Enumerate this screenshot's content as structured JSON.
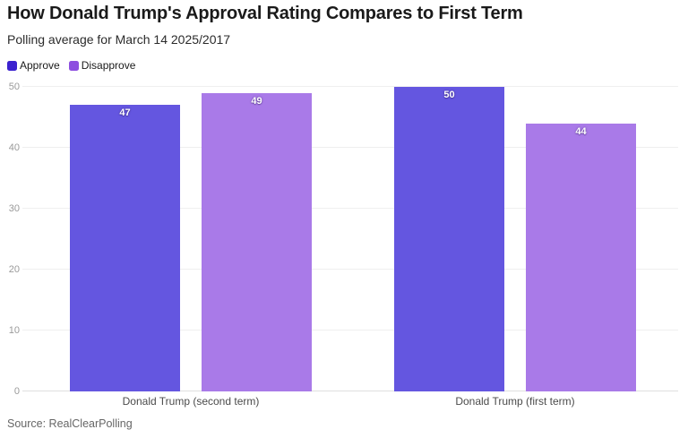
{
  "header": {
    "title": "How Donald Trump's Approval Rating Compares to First Term",
    "subtitle": "Polling average for March 14 2025/2017"
  },
  "legend": {
    "items": [
      {
        "label": "Approve",
        "color": "#3b22cf"
      },
      {
        "label": "Disapprove",
        "color": "#8d4fe0"
      }
    ]
  },
  "chart_data": {
    "type": "bar",
    "categories": [
      "Donald Trump (second term)",
      "Donald Trump (first term)"
    ],
    "series": [
      {
        "name": "Approve",
        "values": [
          47,
          50
        ],
        "bar_color": "#6456e0"
      },
      {
        "name": "Disapprove",
        "values": [
          49,
          44
        ],
        "bar_color": "#a97ae8"
      }
    ],
    "title": "How Donald Trump's Approval Rating Compares to First Term",
    "subtitle": "Polling average for March 14 2025/2017",
    "xlabel": "",
    "ylabel": "",
    "ylim": [
      0,
      50
    ],
    "yticks": [
      0,
      10,
      20,
      30,
      40,
      50
    ],
    "grid": true,
    "legend_position": "top-left",
    "value_labels": true
  },
  "footer": {
    "source": "Source: RealClearPolling"
  }
}
